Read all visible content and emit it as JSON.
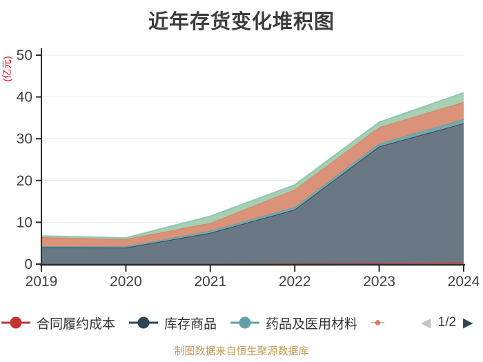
{
  "title": "近年存货变化堆积图",
  "y_axis": {
    "name": "(亿元)",
    "name_color": "#e60012",
    "ticks": [
      0,
      10,
      20,
      30,
      40,
      50
    ],
    "min": 0,
    "max": 50
  },
  "x_axis": {
    "categories": [
      "2019",
      "2020",
      "2021",
      "2022",
      "2023",
      "2024"
    ]
  },
  "legend": {
    "items": [
      {
        "label": "合同履约成本",
        "color": "#c23531",
        "clipped": false
      },
      {
        "label": "库存商品",
        "color": "#2f4554",
        "clipped": false
      },
      {
        "label": "药品及医用材料",
        "color": "#61a0a8",
        "clipped": false
      },
      {
        "label": "",
        "color": "#d48265",
        "clipped": true
      }
    ],
    "pager": {
      "prev_icon": "◀",
      "next_icon": "▶",
      "current": "1/2",
      "prev_color": "#c3c3c3",
      "next_color": "#2f4554"
    }
  },
  "footer": "制图数据来自恒生聚源数据库",
  "footer_color": "#c79a55",
  "chart_data": {
    "type": "area",
    "stacked": true,
    "title": "近年存货变化堆积图",
    "ylabel": "(亿元)",
    "ylim": [
      0,
      50
    ],
    "grid": true,
    "legend_position": "bottom",
    "x": [
      "2019",
      "2020",
      "2021",
      "2022",
      "2023",
      "2024"
    ],
    "series": [
      {
        "name": "合同履约成本",
        "color": "#c23531",
        "fill": "#d2625b",
        "values": [
          0.03,
          0.03,
          0.06,
          0.15,
          0.25,
          0.4
        ]
      },
      {
        "name": "库存商品",
        "color": "#2f4554",
        "fill": "#697884",
        "values": [
          4.0,
          3.9,
          7.4,
          12.9,
          27.9,
          33.3
        ]
      },
      {
        "name": "药品及医用材料",
        "color": "#61a0a8",
        "fill": "#7aa9ad",
        "values": [
          0.25,
          0.3,
          0.5,
          0.6,
          0.7,
          1.0
        ]
      },
      {
        "name": "",
        "color": "#d48265",
        "fill": "#da9279",
        "values": [
          2.15,
          1.75,
          1.9,
          4.2,
          3.9,
          4.1
        ]
      },
      {
        "name": "",
        "color": "#91c7ae",
        "fill": "#a6cfb4",
        "values": [
          0.3,
          0.3,
          1.6,
          1.1,
          1.2,
          2.2
        ]
      }
    ]
  }
}
